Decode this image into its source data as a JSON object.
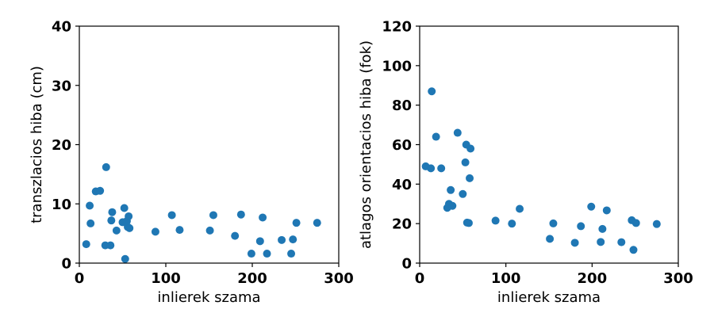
{
  "chart_data": [
    {
      "type": "scatter",
      "title": "",
      "xlabel": "inlierek szama",
      "ylabel": "transzlacios hiba (cm)",
      "xlim": [
        0,
        300
      ],
      "ylim": [
        0,
        40
      ],
      "xticks": [
        "0",
        "100",
        "200",
        "300"
      ],
      "yticks": [
        "0",
        "10",
        "20",
        "30",
        "40"
      ],
      "xtick_values": [
        0,
        100,
        200,
        300
      ],
      "ytick_values": [
        0,
        10,
        20,
        30,
        40
      ],
      "grid": false,
      "color": "#1f77b4",
      "x": [
        8,
        12,
        13,
        19,
        24,
        30,
        31,
        36,
        37,
        38,
        43,
        50,
        52,
        53,
        55,
        56,
        57,
        58,
        88,
        107,
        116,
        151,
        155,
        180,
        187,
        199,
        209,
        212,
        217,
        234,
        245,
        247,
        251,
        275
      ],
      "y": [
        3.2,
        9.7,
        6.7,
        12.1,
        12.2,
        3.0,
        16.2,
        3.0,
        7.2,
        8.6,
        5.5,
        6.9,
        9.3,
        0.7,
        7.1,
        6.1,
        7.9,
        5.9,
        5.3,
        8.1,
        5.6,
        5.5,
        8.1,
        4.6,
        8.2,
        1.6,
        3.7,
        7.7,
        1.6,
        3.9,
        1.6,
        4.0,
        6.8,
        6.8
      ]
    },
    {
      "type": "scatter",
      "title": "",
      "xlabel": "inlierek szama",
      "ylabel": "atlagos orientacios hiba (fok)",
      "xlim": [
        0,
        300
      ],
      "ylim": [
        0,
        120
      ],
      "xticks": [
        "0",
        "100",
        "200",
        "300"
      ],
      "yticks": [
        "0",
        "20",
        "40",
        "60",
        "80",
        "100",
        "120"
      ],
      "xtick_values": [
        0,
        100,
        200,
        300
      ],
      "ytick_values": [
        0,
        20,
        40,
        60,
        80,
        100,
        120
      ],
      "grid": false,
      "color": "#1f77b4",
      "x": [
        7,
        13,
        14,
        19,
        25,
        32,
        34,
        36,
        38,
        44,
        50,
        53,
        54,
        55,
        57,
        58,
        59,
        88,
        107,
        116,
        151,
        155,
        180,
        187,
        199,
        210,
        212,
        217,
        234,
        246,
        248,
        251,
        275
      ],
      "y": [
        49,
        48,
        87,
        64,
        48,
        28,
        30,
        37,
        29,
        66,
        35,
        51,
        60,
        20.5,
        20.3,
        43,
        58,
        21.5,
        20.0,
        27.5,
        12.3,
        20.1,
        10.3,
        18.7,
        28.6,
        10.7,
        17.3,
        26.7,
        10.6,
        21.7,
        6.7,
        20.3,
        19.8
      ]
    }
  ]
}
